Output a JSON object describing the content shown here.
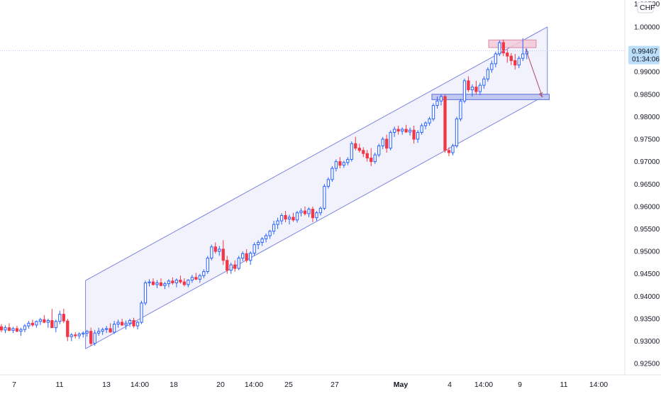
{
  "chart_data": {
    "type": "candlestick",
    "currency": "CHF",
    "colors": {
      "up": "#2962ff",
      "down": "#f23645",
      "channel_line": "#7b86e0",
      "channel_fill": "#eef0fb",
      "support_zone_fill": "#b8c2ee",
      "support_zone_border": "#5b6fd6",
      "resistance_zone_fill": "#f2c9d6",
      "resistance_zone_border": "#d98aa5",
      "projection_arrow": "#b04a6b",
      "price_line": "#b7c7f5",
      "price_badge_bg": "#bbdefb"
    },
    "y_axis": {
      "min": 0.9225,
      "max": 1.006,
      "ticks": [
        "1.00000",
        "0.99500",
        "0.99000",
        "0.98500",
        "0.98000",
        "0.97500",
        "0.97000",
        "0.96500",
        "0.96000",
        "0.95500",
        "0.95000",
        "0.94500",
        "0.94000",
        "0.93500",
        "0.93000",
        "0.92500"
      ],
      "top_partial_label": "1.00500"
    },
    "x_axis": {
      "ticks": [
        {
          "label": "7",
          "bold": false
        },
        {
          "label": "11",
          "bold": false
        },
        {
          "label": "13",
          "bold": false
        },
        {
          "label": "14:00",
          "bold": false
        },
        {
          "label": "18",
          "bold": false
        },
        {
          "label": "20",
          "bold": false
        },
        {
          "label": "14:00",
          "bold": false
        },
        {
          "label": "25",
          "bold": false
        },
        {
          "label": "27",
          "bold": false
        },
        {
          "label": "May",
          "bold": true
        },
        {
          "label": "4",
          "bold": false
        },
        {
          "label": "14:00",
          "bold": false
        },
        {
          "label": "9",
          "bold": false
        },
        {
          "label": "11",
          "bold": false
        },
        {
          "label": "14:00",
          "bold": false
        }
      ]
    },
    "current_price": {
      "value": "0.99467",
      "countdown": "01:34:06",
      "price": 0.99467
    },
    "channel": {
      "upper": {
        "x1": 0.137,
        "y1": 0.9435,
        "x2": 0.877,
        "y2": 1.0
      },
      "lower": {
        "x1": 0.137,
        "y1": 0.9283,
        "x2": 0.877,
        "y2": 0.985
      }
    },
    "support_zone": {
      "x1": 0.692,
      "x2": 0.88,
      "low": 0.9838,
      "high": 0.985
    },
    "resistance_zone": {
      "x1": 0.783,
      "x2": 0.859,
      "low": 0.9954,
      "high": 0.9971
    },
    "projection": {
      "from": {
        "x": 0.842,
        "y": 0.9952
      },
      "to": {
        "x": 0.869,
        "y": 0.9844
      }
    },
    "candles_anchor_x": {
      "start": 0.0,
      "end": 0.844
    },
    "candles": [
      [
        0.9332,
        0.9338,
        0.932,
        0.9325
      ],
      [
        0.9325,
        0.9335,
        0.9318,
        0.933
      ],
      [
        0.933,
        0.934,
        0.9322,
        0.9324
      ],
      [
        0.9324,
        0.9332,
        0.9318,
        0.9328
      ],
      [
        0.9328,
        0.9334,
        0.932,
        0.9322
      ],
      [
        0.9322,
        0.933,
        0.9312,
        0.9326
      ],
      [
        0.9326,
        0.9338,
        0.932,
        0.9334
      ],
      [
        0.9334,
        0.9345,
        0.9328,
        0.934
      ],
      [
        0.934,
        0.9348,
        0.9332,
        0.9336
      ],
      [
        0.9336,
        0.9346,
        0.933,
        0.9344
      ],
      [
        0.9344,
        0.9352,
        0.9336,
        0.9348
      ],
      [
        0.9348,
        0.9358,
        0.934,
        0.9342
      ],
      [
        0.9342,
        0.935,
        0.933,
        0.9346
      ],
      [
        0.9346,
        0.9372,
        0.9336,
        0.933
      ],
      [
        0.933,
        0.9348,
        0.932,
        0.9344
      ],
      [
        0.9344,
        0.9368,
        0.9338,
        0.936
      ],
      [
        0.936,
        0.9372,
        0.934,
        0.9345
      ],
      [
        0.9345,
        0.935,
        0.93,
        0.931
      ],
      [
        0.931,
        0.9318,
        0.93,
        0.9314
      ],
      [
        0.9314,
        0.932,
        0.9306,
        0.9312
      ],
      [
        0.9312,
        0.932,
        0.9305,
        0.9316
      ],
      [
        0.9316,
        0.9322,
        0.9308,
        0.9318
      ],
      [
        0.9318,
        0.9325,
        0.931,
        0.9322
      ],
      [
        0.9322,
        0.933,
        0.929,
        0.9295
      ],
      [
        0.9295,
        0.9325,
        0.929,
        0.9318
      ],
      [
        0.9318,
        0.933,
        0.9312,
        0.9322
      ],
      [
        0.9322,
        0.933,
        0.9314,
        0.9326
      ],
      [
        0.9326,
        0.9334,
        0.9318,
        0.9328
      ],
      [
        0.9328,
        0.934,
        0.9322,
        0.932
      ],
      [
        0.932,
        0.9345,
        0.9316,
        0.9338
      ],
      [
        0.9338,
        0.9348,
        0.933,
        0.9342
      ],
      [
        0.9342,
        0.935,
        0.9334,
        0.9336
      ],
      [
        0.9336,
        0.9346,
        0.9326,
        0.934
      ],
      [
        0.934,
        0.935,
        0.9332,
        0.9346
      ],
      [
        0.9346,
        0.9352,
        0.933,
        0.9334
      ],
      [
        0.9334,
        0.9345,
        0.9326,
        0.9342
      ],
      [
        0.9342,
        0.939,
        0.9338,
        0.9385
      ],
      [
        0.9385,
        0.9435,
        0.938,
        0.943
      ],
      [
        0.943,
        0.9438,
        0.9422,
        0.9432
      ],
      [
        0.9432,
        0.944,
        0.9424,
        0.9426
      ],
      [
        0.9426,
        0.9436,
        0.9418,
        0.943
      ],
      [
        0.943,
        0.944,
        0.9422,
        0.9424
      ],
      [
        0.9424,
        0.9432,
        0.9416,
        0.9428
      ],
      [
        0.9428,
        0.9438,
        0.942,
        0.9434
      ],
      [
        0.9434,
        0.9442,
        0.9426,
        0.943
      ],
      [
        0.943,
        0.944,
        0.942,
        0.9436
      ],
      [
        0.9436,
        0.9446,
        0.9428,
        0.9432
      ],
      [
        0.9432,
        0.944,
        0.9422,
        0.9426
      ],
      [
        0.9426,
        0.9438,
        0.942,
        0.9436
      ],
      [
        0.9436,
        0.9448,
        0.943,
        0.9442
      ],
      [
        0.9442,
        0.9452,
        0.9436,
        0.9438
      ],
      [
        0.9438,
        0.945,
        0.943,
        0.9446
      ],
      [
        0.9446,
        0.946,
        0.944,
        0.9455
      ],
      [
        0.9455,
        0.949,
        0.945,
        0.9485
      ],
      [
        0.9485,
        0.9515,
        0.948,
        0.951
      ],
      [
        0.951,
        0.952,
        0.9495,
        0.95
      ],
      [
        0.95,
        0.9512,
        0.949,
        0.9505
      ],
      [
        0.9505,
        0.9525,
        0.947,
        0.948
      ],
      [
        0.948,
        0.949,
        0.945,
        0.9458
      ],
      [
        0.9458,
        0.9475,
        0.945,
        0.947
      ],
      [
        0.947,
        0.948,
        0.9455,
        0.9462
      ],
      [
        0.9462,
        0.949,
        0.9458,
        0.9485
      ],
      [
        0.9485,
        0.95,
        0.9478,
        0.9495
      ],
      [
        0.9495,
        0.9505,
        0.9475,
        0.948
      ],
      [
        0.948,
        0.95,
        0.947,
        0.9496
      ],
      [
        0.9496,
        0.952,
        0.949,
        0.9515
      ],
      [
        0.9515,
        0.9525,
        0.9505,
        0.952
      ],
      [
        0.952,
        0.9532,
        0.9512,
        0.9528
      ],
      [
        0.9528,
        0.954,
        0.952,
        0.9535
      ],
      [
        0.9535,
        0.9548,
        0.9528,
        0.9545
      ],
      [
        0.9545,
        0.9568,
        0.9538,
        0.956
      ],
      [
        0.956,
        0.9575,
        0.955,
        0.9568
      ],
      [
        0.9568,
        0.9585,
        0.956,
        0.958
      ],
      [
        0.958,
        0.959,
        0.9565,
        0.9572
      ],
      [
        0.9572,
        0.9582,
        0.956,
        0.9576
      ],
      [
        0.9576,
        0.9586,
        0.9566,
        0.957
      ],
      [
        0.957,
        0.959,
        0.9564,
        0.9586
      ],
      [
        0.9586,
        0.9596,
        0.9578,
        0.959
      ],
      [
        0.959,
        0.96,
        0.958,
        0.9584
      ],
      [
        0.9584,
        0.9598,
        0.9576,
        0.9594
      ],
      [
        0.9594,
        0.96,
        0.9565,
        0.9575
      ],
      [
        0.9575,
        0.959,
        0.9568,
        0.9586
      ],
      [
        0.9586,
        0.96,
        0.958,
        0.9596
      ],
      [
        0.9596,
        0.965,
        0.9592,
        0.9645
      ],
      [
        0.9645,
        0.9665,
        0.964,
        0.966
      ],
      [
        0.966,
        0.969,
        0.9655,
        0.9685
      ],
      [
        0.9685,
        0.9705,
        0.9678,
        0.97
      ],
      [
        0.97,
        0.971,
        0.9685,
        0.9692
      ],
      [
        0.9692,
        0.9702,
        0.9686,
        0.9698
      ],
      [
        0.9698,
        0.971,
        0.9692,
        0.9705
      ],
      [
        0.9705,
        0.9745,
        0.97,
        0.974
      ],
      [
        0.974,
        0.9755,
        0.9725,
        0.973
      ],
      [
        0.973,
        0.974,
        0.972,
        0.9725
      ],
      [
        0.9725,
        0.9732,
        0.971,
        0.9718
      ],
      [
        0.9718,
        0.9726,
        0.97,
        0.9708
      ],
      [
        0.9708,
        0.973,
        0.969,
        0.97
      ],
      [
        0.97,
        0.972,
        0.9695,
        0.9715
      ],
      [
        0.9715,
        0.974,
        0.971,
        0.9735
      ],
      [
        0.9735,
        0.9755,
        0.9728,
        0.975
      ],
      [
        0.975,
        0.976,
        0.972,
        0.973
      ],
      [
        0.973,
        0.977,
        0.9725,
        0.9765
      ],
      [
        0.9765,
        0.9778,
        0.9755,
        0.9772
      ],
      [
        0.9772,
        0.978,
        0.976,
        0.9768
      ],
      [
        0.9768,
        0.9776,
        0.976,
        0.9772
      ],
      [
        0.9772,
        0.9782,
        0.9764,
        0.9766
      ],
      [
        0.9766,
        0.9776,
        0.9758,
        0.977
      ],
      [
        0.977,
        0.978,
        0.974,
        0.975
      ],
      [
        0.975,
        0.977,
        0.9742,
        0.9765
      ],
      [
        0.9765,
        0.9785,
        0.976,
        0.978
      ],
      [
        0.978,
        0.979,
        0.9772,
        0.9786
      ],
      [
        0.9786,
        0.98,
        0.978,
        0.9795
      ],
      [
        0.9795,
        0.983,
        0.979,
        0.9825
      ],
      [
        0.9825,
        0.9845,
        0.9818,
        0.9835
      ],
      [
        0.9835,
        0.985,
        0.9825,
        0.9845
      ],
      [
        0.9845,
        0.985,
        0.972,
        0.9725
      ],
      [
        0.9725,
        0.9732,
        0.9712,
        0.972
      ],
      [
        0.972,
        0.974,
        0.9714,
        0.9735
      ],
      [
        0.9735,
        0.98,
        0.973,
        0.9795
      ],
      [
        0.9795,
        0.984,
        0.979,
        0.9835
      ],
      [
        0.9835,
        0.9885,
        0.983,
        0.988
      ],
      [
        0.988,
        0.989,
        0.9855,
        0.986
      ],
      [
        0.986,
        0.9872,
        0.9845,
        0.9866
      ],
      [
        0.9866,
        0.988,
        0.985,
        0.9856
      ],
      [
        0.9856,
        0.9876,
        0.9848,
        0.987
      ],
      [
        0.987,
        0.989,
        0.9862,
        0.9884
      ],
      [
        0.9884,
        0.991,
        0.9878,
        0.9905
      ],
      [
        0.9905,
        0.9925,
        0.9898,
        0.9918
      ],
      [
        0.9918,
        0.9945,
        0.991,
        0.994
      ],
      [
        0.994,
        0.997,
        0.9935,
        0.9965
      ],
      [
        0.9965,
        0.9972,
        0.9935,
        0.9942
      ],
      [
        0.9942,
        0.995,
        0.992,
        0.9935
      ],
      [
        0.9935,
        0.9942,
        0.9915,
        0.9925
      ],
      [
        0.9925,
        0.994,
        0.9905,
        0.9915
      ],
      [
        0.9915,
        0.9935,
        0.9908,
        0.993
      ],
      [
        0.993,
        0.9975,
        0.9924,
        0.994
      ],
      [
        0.994,
        0.9952,
        0.9928,
        0.9946
      ]
    ]
  }
}
